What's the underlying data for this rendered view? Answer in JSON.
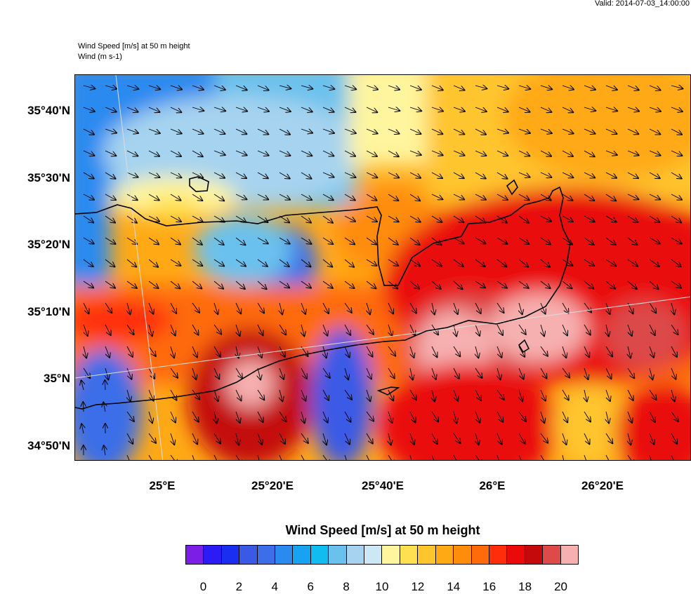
{
  "valid_text": "Valid: 2014-07-03_14:00:00",
  "title_line1": "Wind Speed [m/s] at 50 m height",
  "title_line2": "Wind   (m s-1)",
  "lat_labels": [
    "35°40'N",
    "35°30'N",
    "35°20'N",
    "35°10'N",
    "35°N",
    "34°50'N"
  ],
  "lon_labels": [
    "25°E",
    "25°20'E",
    "25°40'E",
    "26°E",
    "26°20'E"
  ],
  "colorbar_title": "Wind Speed [m/s] at 50 m height",
  "colorbar_ticks": [
    "0",
    "2",
    "4",
    "6",
    "8",
    "10",
    "12",
    "14",
    "16",
    "18",
    "20"
  ],
  "colorbar_colors": [
    "#7d1ee6",
    "#2d1bf5",
    "#1a2ef2",
    "#3a5ae6",
    "#3b6ee8",
    "#2a8af0",
    "#18a3f2",
    "#11bdf0",
    "#6ac1ee",
    "#a6d3ef",
    "#cde8f5",
    "#fff59e",
    "#ffe050",
    "#ffc52d",
    "#ffa915",
    "#ff8c0a",
    "#ff6a0a",
    "#ff2d0a",
    "#ea0a0a",
    "#c40a0a",
    "#dc4a4a",
    "#f7b0b0"
  ]
}
